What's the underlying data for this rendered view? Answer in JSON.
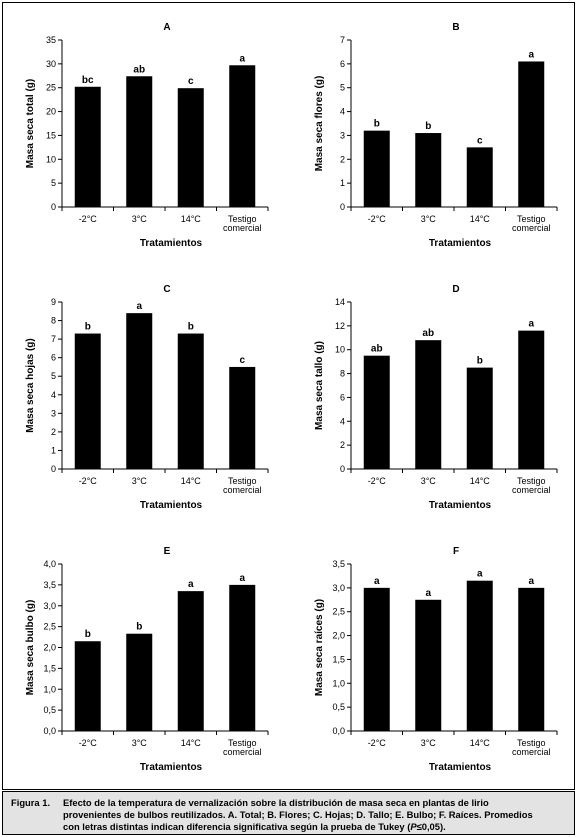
{
  "chart_data": [
    {
      "type": "bar",
      "title": "A",
      "ylabel": "Masa seca total (g)",
      "xlabel": "Tratamientos",
      "categories": [
        "-2°C",
        "3°C",
        "14°C",
        "Testigo comercial"
      ],
      "values": [
        25.2,
        27.4,
        24.9,
        29.7
      ],
      "letters": [
        "bc",
        "ab",
        "c",
        "a"
      ],
      "ylim": [
        0,
        35
      ],
      "ytick_labels": [
        "0",
        "5",
        "10",
        "15",
        "20",
        "25",
        "30",
        "35"
      ]
    },
    {
      "type": "bar",
      "title": "B",
      "ylabel": "Masa seca flores (g)",
      "xlabel": "Tratamientos",
      "categories": [
        "-2°C",
        "3°C",
        "14°C",
        "Testigo comercial"
      ],
      "values": [
        3.2,
        3.1,
        2.5,
        6.1
      ],
      "letters": [
        "b",
        "b",
        "c",
        "a"
      ],
      "ylim": [
        0,
        7
      ],
      "ytick_labels": [
        "0",
        "1",
        "2",
        "3",
        "4",
        "5",
        "6",
        "7"
      ]
    },
    {
      "type": "bar",
      "title": "C",
      "ylabel": "Masa seca hojas (g)",
      "xlabel": "Tratamientos",
      "categories": [
        "-2°C",
        "3°C",
        "14°C",
        "Testigo comercial"
      ],
      "values": [
        7.3,
        8.4,
        7.3,
        5.5
      ],
      "letters": [
        "b",
        "a",
        "b",
        "c"
      ],
      "ylim": [
        0,
        9
      ],
      "ytick_labels": [
        "0",
        "1",
        "2",
        "3",
        "4",
        "5",
        "6",
        "7",
        "8",
        "9"
      ]
    },
    {
      "type": "bar",
      "title": "D",
      "ylabel": "Masa seca tallo (g)",
      "xlabel": "Tratamientos",
      "categories": [
        "-2°C",
        "3°C",
        "14°C",
        "Testigo comercial"
      ],
      "values": [
        9.5,
        10.8,
        8.5,
        11.6
      ],
      "letters": [
        "ab",
        "ab",
        "b",
        "a"
      ],
      "ylim": [
        0,
        14
      ],
      "ytick_labels": [
        "0",
        "2",
        "4",
        "6",
        "8",
        "10",
        "12",
        "14"
      ]
    },
    {
      "type": "bar",
      "title": "E",
      "ylabel": "Masa seca bulbo (g)",
      "xlabel": "Tratamientos",
      "categories": [
        "-2°C",
        "3°C",
        "14°C",
        "Testigo comercial"
      ],
      "values": [
        2.15,
        2.33,
        3.35,
        3.5
      ],
      "letters": [
        "b",
        "b",
        "a",
        "a"
      ],
      "ylim": [
        0,
        4
      ],
      "ytick_labels": [
        "0,0",
        "0,5",
        "1,0",
        "1,5",
        "2,0",
        "2,5",
        "3,0",
        "3,5",
        "4,0"
      ]
    },
    {
      "type": "bar",
      "title": "F",
      "ylabel": "Masa seca raíces (g)",
      "xlabel": "Tratamientos",
      "categories": [
        "-2°C",
        "3°C",
        "14°C",
        "Testigo comercial"
      ],
      "values": [
        3.0,
        2.75,
        3.15,
        3.0
      ],
      "letters": [
        "a",
        "a",
        "a",
        "a"
      ],
      "ylim": [
        0,
        3.5
      ],
      "ytick_labels": [
        "0,0",
        "0,5",
        "1,0",
        "1,5",
        "2,0",
        "2,5",
        "3,0",
        "3,5"
      ]
    }
  ],
  "caption": {
    "label": "Figura 1.",
    "line1": "Efecto de la temperatura de vernalización sobre la distribución de masa seca en plantas de lirio",
    "line2": "provenientes de bulbos reutilizados. A. Total; B. Flores; C. Hojas; D. Tallo; E. Bulbo; F. Raíces. Promedios",
    "line3_before": "con letras distintas indican diferencia significativa según la prueba de Tukey (",
    "line3_p": "P",
    "line3_after": "≤0,05)."
  },
  "colors": {
    "bar": "#000000",
    "caption_bg": "#e3e3e3"
  }
}
